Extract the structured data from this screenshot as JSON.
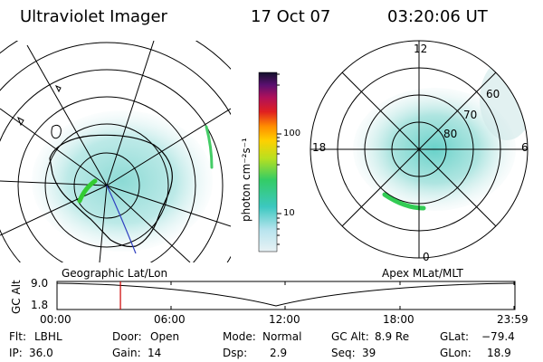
{
  "header": {
    "title": "Ultraviolet Imager",
    "date": "17 Oct 07",
    "time": "03:20:06 UT"
  },
  "panels": {
    "left_label": "Geographic Lat/Lon",
    "right_label": "Apex MLat/MLT"
  },
  "colorbar": {
    "unit_label": "photon cm⁻²s⁻¹",
    "ticks": [
      "100",
      "10"
    ]
  },
  "polar_plot": {
    "mlt_labels": {
      "top": "12",
      "left": "18",
      "right": "6",
      "bottom": "0"
    },
    "mlat_labels": [
      "60",
      "70",
      "80"
    ]
  },
  "altitude_strip": {
    "axis_label": "GC Alt",
    "y_ticks": [
      "9.0",
      "1.8"
    ],
    "x_ticks": [
      "00:00",
      "06:00",
      "12:00",
      "18:00",
      "23:59"
    ],
    "marker_time_hours": 3.33,
    "marker_color": "#cc0000"
  },
  "info": {
    "flt_label": "Flt:",
    "flt_value": "LBHL",
    "ip_label": "IP:",
    "ip_value": "36.0",
    "door_label": "Door:",
    "door_value": "Open",
    "gain_label": "Gain:",
    "gain_value": "14",
    "mode_label": "Mode:",
    "mode_value": "Normal",
    "dsp_label": "Dsp:",
    "dsp_value": "2.9",
    "gcalt_label": "GC Alt:",
    "gcalt_value": "8.9 Re",
    "seq_label": "Seq:",
    "seq_value": "39",
    "glat_label": "GLat:",
    "glat_value": "−79.4",
    "glon_label": "GLon:",
    "glon_value": "18.9"
  }
}
